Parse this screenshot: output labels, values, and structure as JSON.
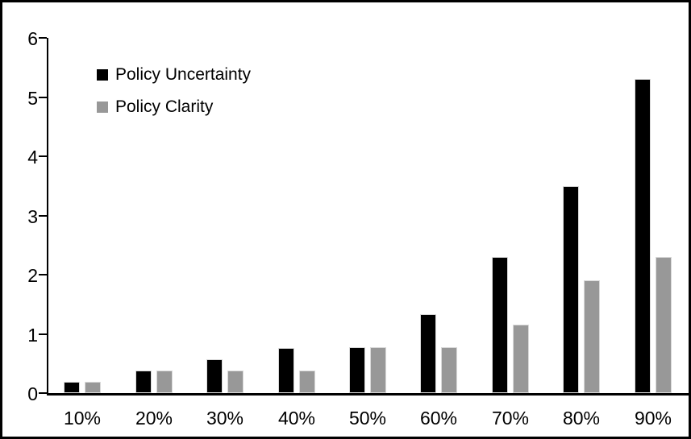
{
  "chart_data": {
    "type": "bar",
    "title": "",
    "xlabel": "",
    "ylabel": "",
    "categories": [
      "10%",
      "20%",
      "30%",
      "40%",
      "50%",
      "60%",
      "70%",
      "80%",
      "90%"
    ],
    "series": [
      {
        "name": "Policy Uncertainty",
        "color": "#000000",
        "values": [
          0.19,
          0.38,
          0.57,
          0.76,
          0.77,
          1.33,
          2.3,
          3.5,
          5.3
        ]
      },
      {
        "name": "Policy Clarity",
        "color": "#989898",
        "values": [
          0.19,
          0.38,
          0.38,
          0.38,
          0.77,
          0.77,
          1.15,
          1.9,
          2.3
        ]
      }
    ],
    "ylim": [
      0,
      6
    ],
    "yticks": [
      0,
      1,
      2,
      3,
      4,
      5,
      6
    ],
    "grid": false,
    "legend_position": "top-left-inside"
  },
  "colors": {
    "axis": "#000000",
    "text": "#000000",
    "background": "#ffffff",
    "bar_border": "#d9d9d9",
    "frame_border": "#000000"
  }
}
